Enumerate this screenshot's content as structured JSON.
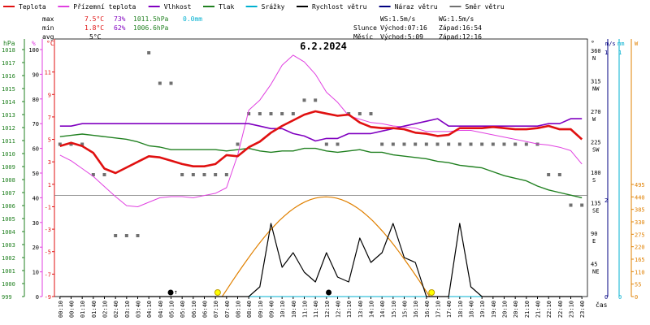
{
  "legend": [
    {
      "label": "Teplota",
      "color": "#e01010"
    },
    {
      "label": "Přízemní teplota",
      "color": "#e040e0"
    },
    {
      "label": "Vlhkost",
      "color": "#8000c0"
    },
    {
      "label": "Tlak",
      "color": "#208020"
    },
    {
      "label": "Srážky",
      "color": "#00b0d0"
    },
    {
      "label": "Rychlost větru",
      "color": "#000000"
    },
    {
      "label": "Náraz větru",
      "color": "#000080"
    },
    {
      "label": "Směr větru",
      "color": "#707070"
    }
  ],
  "stats": {
    "max_label": "max",
    "min_label": "min",
    "avg_label": "avg",
    "max_temp": "7.5°C",
    "max_hum": "73%",
    "max_press": "1011.5hPa",
    "max_rain": "0.0mm",
    "min_temp": "1.8°C",
    "min_hum": "62%",
    "min_press": "1006.6hPa",
    "avg_temp": "5°C"
  },
  "info": {
    "ws": "WS:1.5m/s",
    "wg": "WG:1.5m/s",
    "slunce": "Slunce",
    "sun_rise": "Východ:07:16",
    "sun_set": "Západ:16:54",
    "mesic": "Měsíc",
    "moon_rise": "Východ:5:09",
    "moon_set": "Západ:12:16"
  },
  "chart_data": {
    "type": "line",
    "title": "6.2.2024",
    "xlabel": "čas",
    "x": [
      "00:10",
      "00:40",
      "01:10",
      "01:40",
      "02:10",
      "02:40",
      "03:10",
      "03:40",
      "04:10",
      "04:40",
      "05:10",
      "05:40",
      "06:10",
      "06:40",
      "07:10",
      "07:40",
      "08:10",
      "08:40",
      "09:10",
      "09:40",
      "10:10",
      "10:40",
      "11:10",
      "11:40",
      "12:10",
      "12:40",
      "13:10",
      "13:40",
      "14:10",
      "14:40",
      "15:10",
      "15:40",
      "16:10",
      "16:40",
      "17:10",
      "17:40",
      "18:10",
      "18:40",
      "19:10",
      "19:40",
      "20:10",
      "20:40",
      "21:10",
      "21:40",
      "22:10",
      "22:40",
      "23:10",
      "23:40"
    ],
    "axes": {
      "hpa": {
        "unit": "hPa",
        "range": [
          999,
          1018
        ],
        "ticks": [
          999,
          1000,
          1001,
          1002,
          1003,
          1004,
          1005,
          1006,
          1007,
          1008,
          1009,
          1010,
          1011,
          1012,
          1013,
          1014,
          1015,
          1016,
          1017,
          1018
        ]
      },
      "percent": {
        "unit": "%",
        "range": [
          0,
          100
        ],
        "ticks": [
          0,
          10,
          20,
          30,
          40,
          50,
          60,
          70,
          80,
          90,
          100
        ]
      },
      "celsius": {
        "unit": "°C",
        "range": [
          -9,
          13
        ],
        "ticks": [
          -9,
          -7,
          -5,
          -3,
          -1,
          1,
          3,
          5,
          7,
          9,
          11
        ]
      },
      "direction": {
        "unit": "°",
        "ticks": [
          {
            "v": 45,
            "l": "NE"
          },
          {
            "v": 90,
            "l": "E"
          },
          {
            "v": 135,
            "l": "SE"
          },
          {
            "v": 180,
            "l": "S"
          },
          {
            "v": 225,
            "l": "SW"
          },
          {
            "v": 270,
            "l": "W"
          },
          {
            "v": 315,
            "l": "NW"
          },
          {
            "v": 360,
            "l": "N"
          }
        ]
      },
      "wind": {
        "unit": "m/s",
        "ticks": [
          {
            "v": 0,
            "l": "0"
          },
          {
            "v": 1,
            "l": "1"
          },
          {
            "v": 2,
            "l": "2"
          }
        ]
      },
      "rain": {
        "unit": "mm",
        "ticks": [
          {
            "v": 0,
            "l": "0"
          },
          {
            "v": 1,
            "l": "1"
          }
        ]
      },
      "radiation": {
        "unit": "W",
        "ticks": [
          0,
          55,
          110,
          165,
          220,
          275,
          330,
          385,
          440,
          495
        ]
      }
    },
    "series": [
      {
        "name": "Teplota",
        "axis": "celsius",
        "color": "#e01010",
        "values": [
          4.4,
          4.7,
          4.4,
          3.8,
          2.4,
          2.0,
          2.5,
          3.0,
          3.5,
          3.4,
          3.1,
          2.8,
          2.6,
          2.6,
          2.8,
          3.6,
          3.5,
          4.3,
          4.8,
          5.6,
          6.2,
          6.7,
          7.2,
          7.5,
          7.3,
          7.1,
          7.2,
          6.5,
          6.1,
          6.0,
          6.0,
          5.9,
          5.6,
          5.5,
          5.3,
          5.4,
          6.0,
          6.0,
          6.0,
          6.1,
          6.0,
          5.9,
          5.9,
          6.0,
          6.2,
          5.9,
          5.9,
          5.0
        ]
      },
      {
        "name": "Přízemní teplota",
        "axis": "celsius",
        "color": "#e040e0",
        "values": [
          3.6,
          3.1,
          2.4,
          1.7,
          0.8,
          -0.1,
          -0.9,
          -1.0,
          -0.6,
          -0.2,
          -0.1,
          -0.1,
          -0.2,
          0.0,
          0.2,
          0.7,
          3.6,
          7.6,
          8.5,
          9.9,
          11.6,
          12.5,
          11.9,
          10.8,
          9.2,
          8.3,
          7.1,
          6.8,
          6.5,
          6.4,
          6.2,
          6.1,
          6.0,
          5.7,
          5.7,
          5.7,
          5.8,
          5.8,
          5.6,
          5.4,
          5.2,
          5.0,
          4.8,
          4.6,
          4.5,
          4.3,
          4.0,
          2.8
        ]
      },
      {
        "name": "Vlhkost",
        "axis": "percent",
        "color": "#8000c0",
        "values": [
          69,
          69,
          70,
          70,
          70,
          70,
          70,
          70,
          70,
          70,
          70,
          70,
          70,
          70,
          70,
          70,
          70,
          70,
          69,
          68,
          68,
          66,
          65,
          63,
          64,
          64,
          66,
          66,
          66,
          67,
          68,
          69,
          70,
          71,
          72,
          69,
          69,
          69,
          69,
          69,
          69,
          69,
          69,
          69,
          70,
          70,
          72,
          72
        ]
      },
      {
        "name": "Tlak",
        "axis": "hpa",
        "color": "#208020",
        "values": [
          1011.3,
          1011.4,
          1011.5,
          1011.4,
          1011.3,
          1011.2,
          1011.1,
          1010.9,
          1010.6,
          1010.5,
          1010.3,
          1010.3,
          1010.3,
          1010.3,
          1010.3,
          1010.2,
          1010.3,
          1010.4,
          1010.2,
          1010.1,
          1010.2,
          1010.2,
          1010.4,
          1010.4,
          1010.2,
          1010.1,
          1010.2,
          1010.3,
          1010.1,
          1010.1,
          1009.9,
          1009.8,
          1009.7,
          1009.6,
          1009.4,
          1009.3,
          1009.1,
          1009.0,
          1008.9,
          1008.6,
          1008.3,
          1008.1,
          1007.9,
          1007.5,
          1007.2,
          1007.0,
          1006.8,
          1006.6
        ]
      },
      {
        "name": "Rychlost větru",
        "axis": "wind_px_scale",
        "color": "#000000",
        "values": [
          0,
          0,
          0,
          0,
          0,
          0,
          0,
          0,
          0,
          0,
          0,
          0,
          0,
          0,
          0,
          0,
          0,
          0,
          0.2,
          1.5,
          0.6,
          0.9,
          0.5,
          0.3,
          0.9,
          0.4,
          0.3,
          1.2,
          0.7,
          0.9,
          1.5,
          0.8,
          0.7,
          0,
          0,
          0,
          1.5,
          0.2,
          0,
          0,
          0,
          0,
          0,
          0,
          0,
          0,
          0,
          0
        ]
      },
      {
        "name": "Srážky",
        "axis": "rain",
        "color": "#00b0d0",
        "values": [
          0,
          0,
          0,
          0,
          0,
          0,
          0,
          0,
          0,
          0,
          0,
          0,
          0,
          0,
          0,
          0,
          0,
          0,
          0,
          0,
          0,
          0,
          0,
          0,
          0,
          0,
          0,
          0,
          0,
          0,
          0,
          0,
          0,
          0,
          0,
          0,
          0,
          0,
          0,
          0,
          0,
          0,
          0,
          0,
          0,
          0,
          0,
          0
        ]
      },
      {
        "name": "Směr větru",
        "axis": "direction",
        "color": "#707070",
        "values": [
          225,
          225,
          225,
          180,
          180,
          90,
          90,
          90,
          360,
          315,
          315,
          180,
          180,
          180,
          180,
          180,
          225,
          270,
          270,
          270,
          270,
          270,
          290,
          290,
          225,
          225,
          270,
          270,
          270,
          225,
          225,
          225,
          225,
          225,
          225,
          225,
          225,
          225,
          225,
          225,
          225,
          225,
          225,
          225,
          180,
          180,
          135,
          135
        ]
      }
    ],
    "annotations": [
      {
        "type": "moon",
        "x": "05:09",
        "label": "↑"
      },
      {
        "type": "sun",
        "x": "07:16"
      },
      {
        "type": "moon",
        "x": "12:16"
      },
      {
        "type": "sun",
        "x": "16:54"
      }
    ],
    "grid": false,
    "legend_position": "top"
  }
}
